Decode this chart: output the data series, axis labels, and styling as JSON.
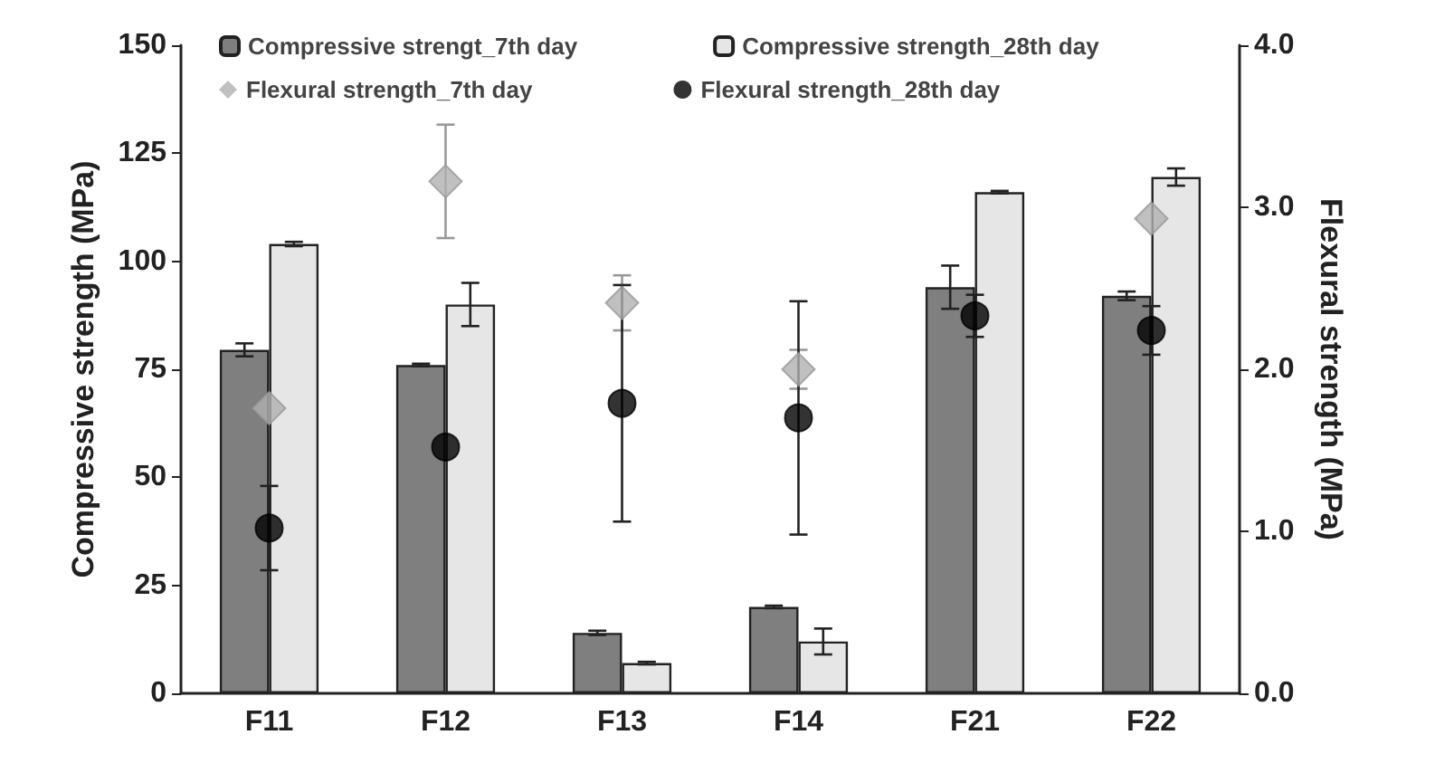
{
  "chart_data": {
    "type": "bar",
    "ylabel": "Compressive strength (MPa)",
    "y2label": "Flexural strength (MPa)",
    "categories": [
      "F11",
      "F12",
      "F13",
      "F14",
      "F21",
      "F22"
    ],
    "series": [
      {
        "name": "Compressive strengt_7th day",
        "color": "#7f7f7f",
        "values": [
          79.5,
          76,
          14,
          20,
          94,
          92
        ],
        "errors": [
          1.5,
          0.3,
          0.5,
          0.3,
          5,
          1
        ]
      },
      {
        "name": "Compressive strength_28th day",
        "color": "#e6e6e6",
        "values": [
          104,
          90,
          7,
          12,
          116,
          119.5
        ],
        "errors": [
          0.5,
          5,
          0.3,
          3,
          0.3,
          2
        ]
      },
      {
        "name": "Flexural strength_7th day",
        "type": "scatter",
        "axis": "y2",
        "marker": "diamond",
        "color": "#b0b0b0",
        "values": [
          1.76,
          3.16,
          2.41,
          2.0,
          null,
          2.93
        ],
        "errors": [
          null,
          0.35,
          0.17,
          0.12,
          null,
          null
        ]
      },
      {
        "name": "Flexural strength_28th day",
        "type": "scatter",
        "axis": "y2",
        "marker": "circle",
        "color": "#000000",
        "values": [
          1.02,
          1.52,
          1.79,
          1.7,
          2.33,
          2.24
        ],
        "errors": [
          0.26,
          null,
          0.73,
          0.72,
          0.13,
          0.15
        ]
      }
    ],
    "ylim": [
      0,
      150
    ],
    "yticks": [
      0,
      25,
      50,
      75,
      100,
      125,
      150
    ],
    "y2lim": [
      0,
      4
    ],
    "y2ticks": [
      {
        "value": 0,
        "label": "0.0"
      },
      {
        "value": 1,
        "label": "1.0"
      },
      {
        "value": 2,
        "label": "2.0"
      },
      {
        "value": 3,
        "label": "3.0"
      },
      {
        "value": 4,
        "label": "4.0"
      }
    ],
    "grid": false,
    "legend": "top"
  }
}
